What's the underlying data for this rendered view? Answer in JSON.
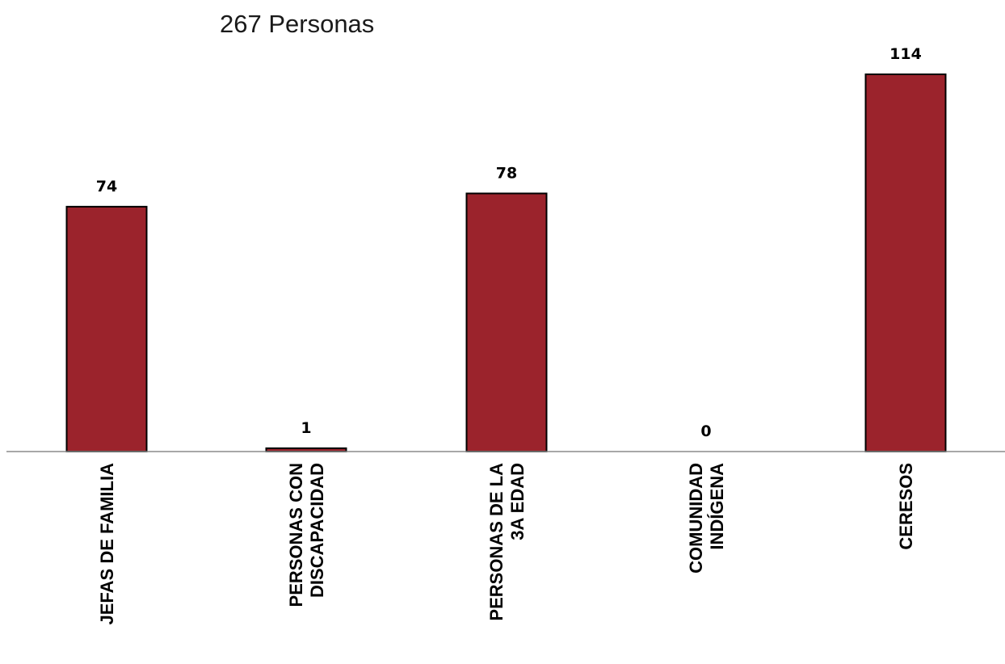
{
  "chart_data": {
    "type": "bar",
    "title": "267 Personas",
    "xlabel": "",
    "ylabel": "",
    "categories": [
      [
        "JEFAS DE FAMILIA"
      ],
      [
        "PERSONAS CON",
        "DISCAPACIDAD"
      ],
      [
        "PERSONAS DE LA",
        "3A EDAD"
      ],
      [
        "COMUNIDAD",
        "INDÍGENA"
      ],
      [
        "CERESOS"
      ]
    ],
    "values": [
      74,
      1,
      78,
      0,
      114
    ],
    "ylim": [
      0,
      114
    ],
    "grid": false,
    "legend": "none",
    "bar_color": "#9B232C",
    "data_labels": true
  }
}
